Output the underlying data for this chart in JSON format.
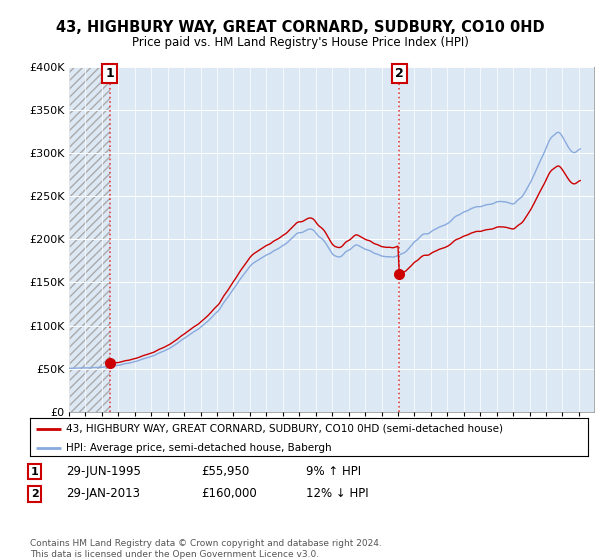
{
  "title": "43, HIGHBURY WAY, GREAT CORNARD, SUDBURY, CO10 0HD",
  "subtitle": "Price paid vs. HM Land Registry's House Price Index (HPI)",
  "ylim": [
    0,
    400000
  ],
  "yticks": [
    0,
    50000,
    100000,
    150000,
    200000,
    250000,
    300000,
    350000,
    400000
  ],
  "ytick_labels": [
    "£0",
    "£50K",
    "£100K",
    "£150K",
    "£200K",
    "£250K",
    "£300K",
    "£350K",
    "£400K"
  ],
  "xlim_start": 1993.0,
  "xlim_end": 2024.92,
  "sale1_date": 1995.49,
  "sale1_price": 55950,
  "sale2_date": 2013.08,
  "sale2_price": 160000,
  "legend_line1": "43, HIGHBURY WAY, GREAT CORNARD, SUDBURY, CO10 0HD (semi-detached house)",
  "legend_line2": "HPI: Average price, semi-detached house, Babergh",
  "footer": "Contains HM Land Registry data © Crown copyright and database right 2024.\nThis data is licensed under the Open Government Licence v3.0.",
  "price_line_color": "#cc0000",
  "hpi_line_color": "#88aadd",
  "vline_color": "#dd4444",
  "background_color": "#ffffff",
  "plot_bg_color": "#dde8f5",
  "hatch_color": "#aaaaaa"
}
